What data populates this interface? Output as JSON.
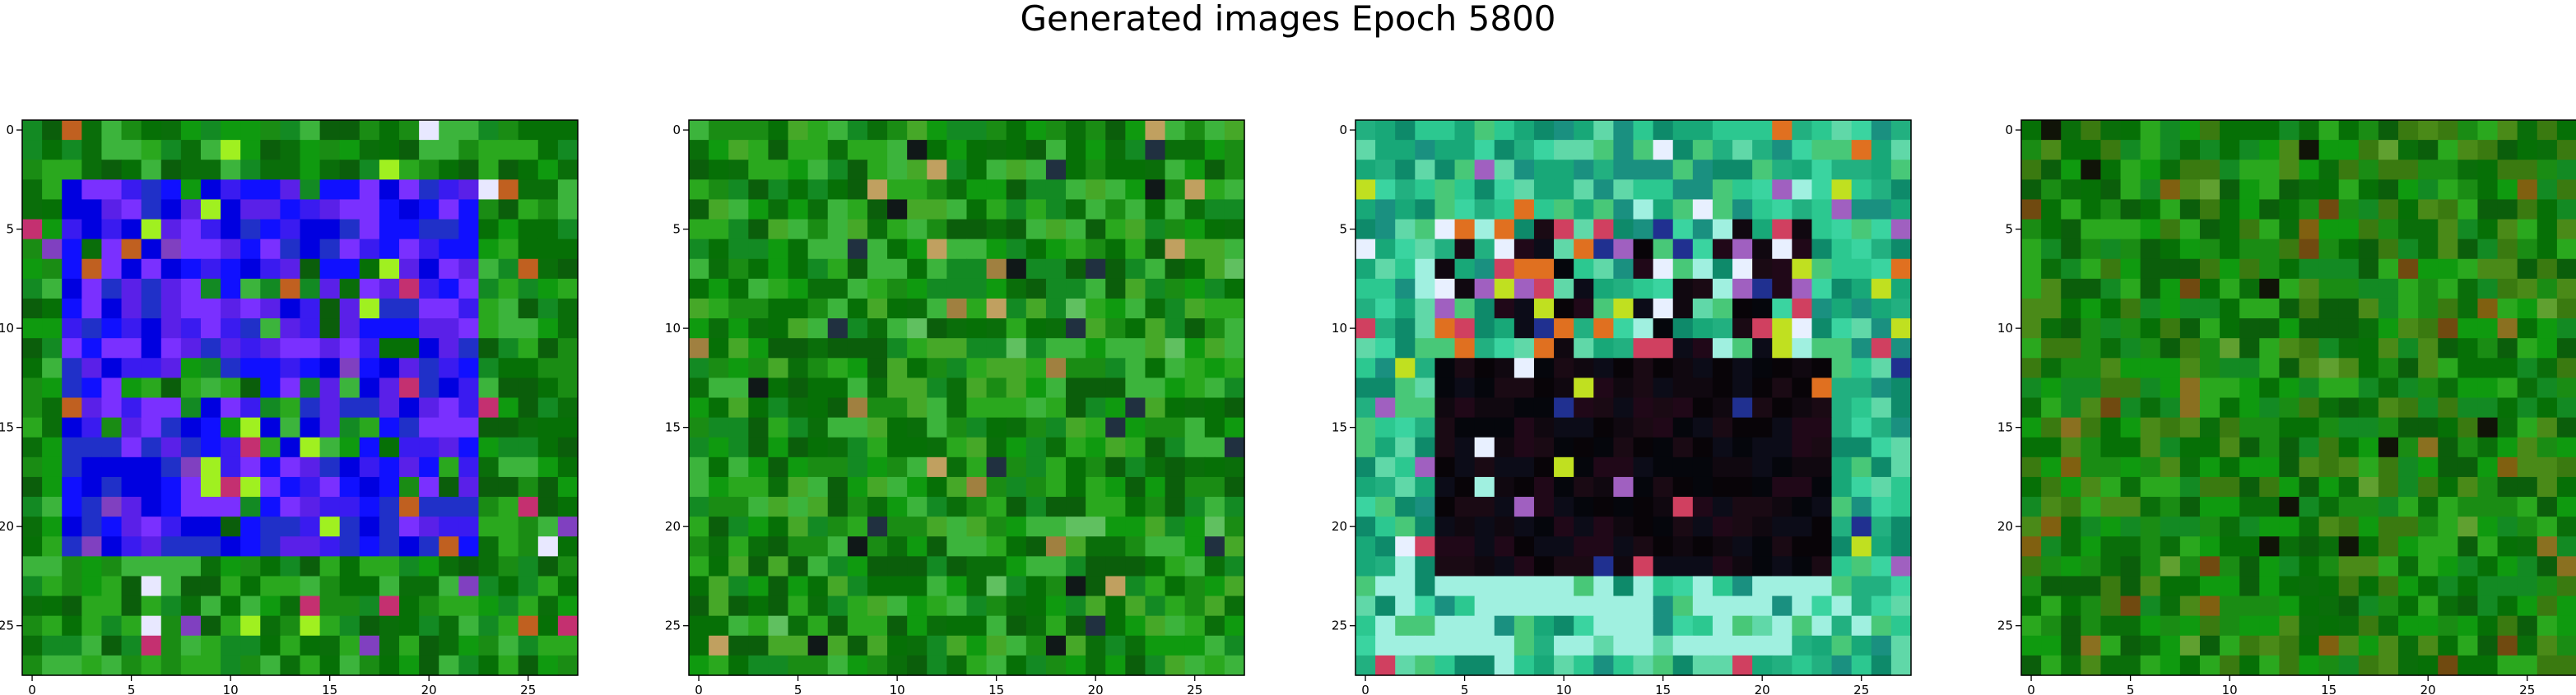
{
  "title": "Generated images Epoch 5800",
  "chart_data": [
    {
      "type": "heatmap",
      "panel": 1,
      "rendering": "rgb-image",
      "grid_size": [
        28,
        28
      ],
      "xlim": [
        -0.5,
        27.5
      ],
      "ylim": [
        27.5,
        -0.5
      ],
      "x_ticks": [
        0,
        5,
        10,
        15,
        20,
        25
      ],
      "y_ticks": [
        0,
        5,
        10,
        15,
        20,
        25
      ],
      "x_tick_labels": [
        "0",
        "5",
        "10",
        "15",
        "20",
        "25"
      ],
      "y_tick_labels": [
        "0",
        "5",
        "10",
        "15",
        "20",
        "25"
      ],
      "pattern": "blue-square-frame",
      "palette": {
        "background": [
          "#0a6e0a",
          "#1a8c14",
          "#0f9a0f",
          "#2aa81e",
          "#067006",
          "#3cb43c",
          "#138a23",
          "#0b5e0b"
        ],
        "feature": [
          "#1010ff",
          "#3a1bf0",
          "#5a20e8",
          "#0000e0",
          "#7a30ff",
          "#2030c8"
        ],
        "accent": [
          "#e8e8ff",
          "#c43070",
          "#c06020",
          "#a0f020",
          "#8040c0"
        ]
      }
    },
    {
      "type": "heatmap",
      "panel": 2,
      "rendering": "rgb-image",
      "grid_size": [
        28,
        28
      ],
      "xlim": [
        -0.5,
        27.5
      ],
      "ylim": [
        27.5,
        -0.5
      ],
      "x_ticks": [
        0,
        5,
        10,
        15,
        20,
        25
      ],
      "y_ticks": [
        0,
        5,
        10,
        15,
        20,
        25
      ],
      "x_tick_labels": [
        "0",
        "5",
        "10",
        "15",
        "20",
        "25"
      ],
      "y_tick_labels": [
        "0",
        "5",
        "10",
        "15",
        "20",
        "25"
      ],
      "pattern": "noise",
      "palette": {
        "background": [
          "#0a6e0a",
          "#1a8c14",
          "#0f9a0f",
          "#2aa81e",
          "#067006",
          "#3cb43c",
          "#138a23",
          "#0b5e0b",
          "#46a828"
        ],
        "feature": [],
        "accent": [
          "#101818",
          "#a08040",
          "#c0a060",
          "#203040",
          "#60c060"
        ]
      }
    },
    {
      "type": "heatmap",
      "panel": 3,
      "rendering": "rgb-image",
      "grid_size": [
        28,
        28
      ],
      "xlim": [
        -0.5,
        27.5
      ],
      "ylim": [
        27.5,
        -0.5
      ],
      "x_ticks": [
        0,
        5,
        10,
        15,
        20,
        25
      ],
      "y_ticks": [
        0,
        5,
        10,
        15,
        20,
        25
      ],
      "x_tick_labels": [
        "0",
        "5",
        "10",
        "15",
        "20",
        "25"
      ],
      "y_tick_labels": [
        "0",
        "5",
        "10",
        "15",
        "20",
        "25"
      ],
      "pattern": "dark-square-teal-frame",
      "palette": {
        "background": [
          "#18a878",
          "#2cc890",
          "#0e8a6a",
          "#3ad4a0",
          "#22b080",
          "#48c878",
          "#1a9080",
          "#60d8a8"
        ],
        "feature": [
          "#080408",
          "#100810",
          "#1a0a14",
          "#05060c",
          "#200818",
          "#0c0c18"
        ],
        "accent": [
          "#e8f0ff",
          "#c0e020",
          "#e07020",
          "#d04060",
          "#203090",
          "#a060c0",
          "#a0f0e0"
        ]
      }
    },
    {
      "type": "heatmap",
      "panel": 4,
      "rendering": "rgb-image",
      "grid_size": [
        28,
        28
      ],
      "xlim": [
        -0.5,
        27.5
      ],
      "ylim": [
        27.5,
        -0.5
      ],
      "x_ticks": [
        0,
        5,
        10,
        15,
        20,
        25
      ],
      "y_ticks": [
        0,
        5,
        10,
        15,
        20,
        25
      ],
      "x_tick_labels": [
        "0",
        "5",
        "10",
        "15",
        "20",
        "25"
      ],
      "y_tick_labels": [
        "0",
        "5",
        "10",
        "15",
        "20",
        "25"
      ],
      "pattern": "noise",
      "palette": {
        "background": [
          "#0a6e0a",
          "#1a8c14",
          "#0f9a0f",
          "#2aa81e",
          "#067006",
          "#3a7a10",
          "#138a23",
          "#0b5e0b",
          "#4a8a18"
        ],
        "feature": [],
        "accent": [
          "#806010",
          "#8a7020",
          "#101408",
          "#60a030",
          "#704a10"
        ]
      }
    }
  ]
}
